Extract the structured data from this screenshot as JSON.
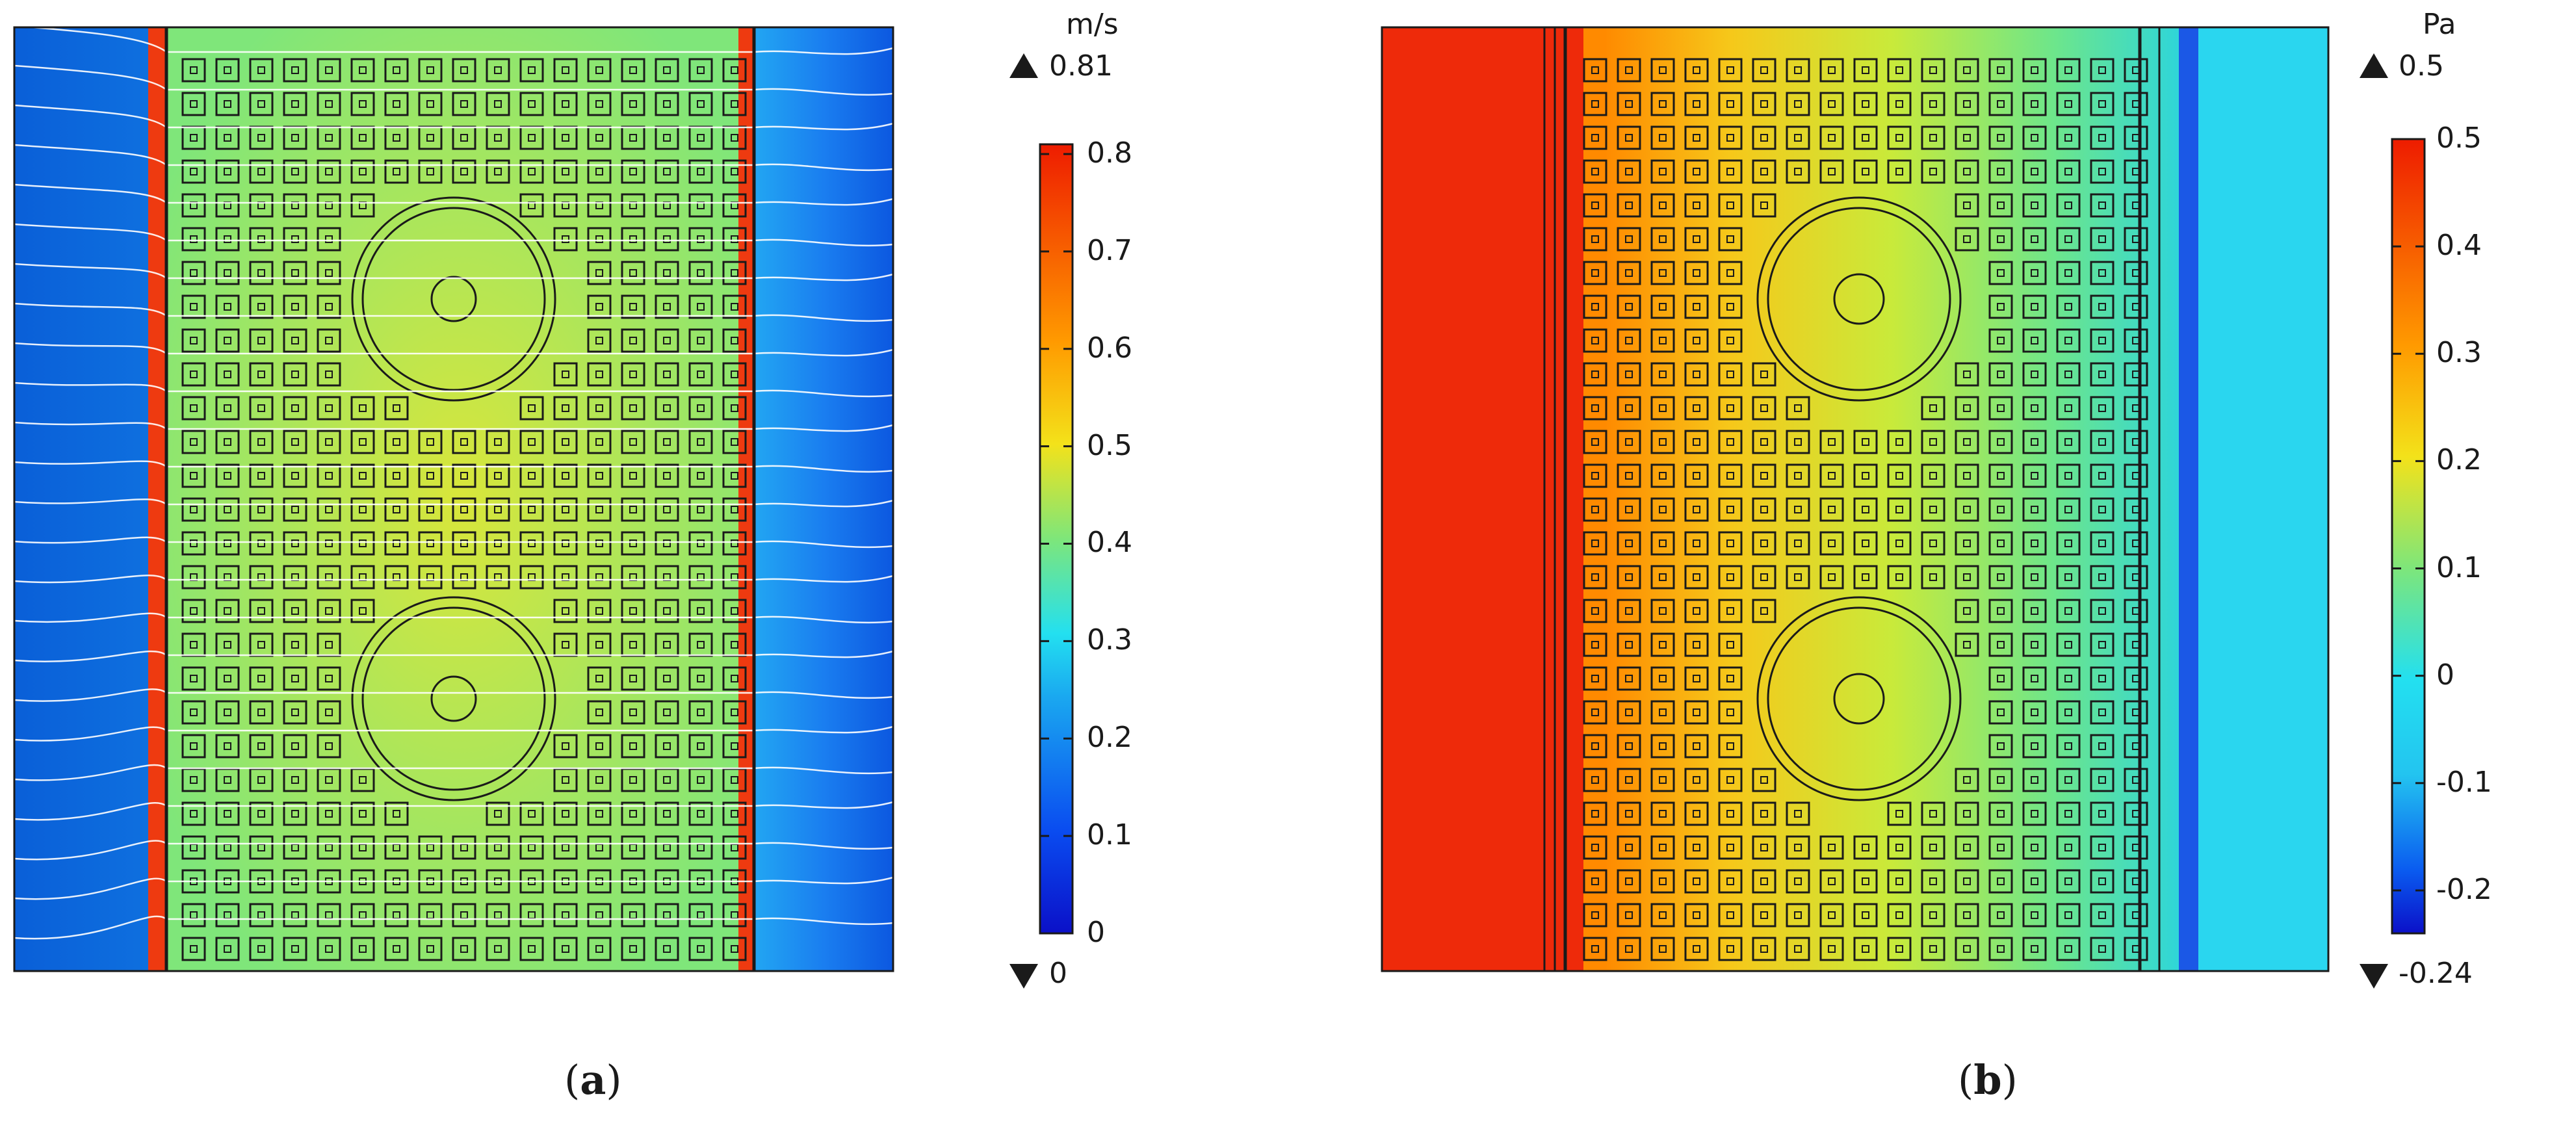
{
  "panel_a": {
    "caption_letter": "a",
    "colorbar": {
      "unit": "m/s",
      "max_marker": "0.81",
      "min_marker": "0",
      "ticks": [
        "0.8",
        "0.7",
        "0.6",
        "0.5",
        "0.4",
        "0.3",
        "0.2",
        "0.1",
        "0"
      ],
      "tick_values": [
        0.8,
        0.7,
        0.6,
        0.5,
        0.4,
        0.3,
        0.2,
        0.1,
        0
      ],
      "range": [
        0,
        0.81
      ]
    },
    "field": "velocity magnitude with white streamlines"
  },
  "panel_b": {
    "caption_letter": "b",
    "colorbar": {
      "unit": "Pa",
      "max_marker": "0.5",
      "min_marker": "-0.24",
      "ticks": [
        "0.5",
        "0.4",
        "0.3",
        "0.2",
        "0.1",
        "0",
        "-0.1",
        "-0.2"
      ],
      "tick_values": [
        0.5,
        0.4,
        0.3,
        0.2,
        0.1,
        0,
        -0.1,
        -0.2
      ],
      "range": [
        -0.24,
        0.5
      ]
    },
    "field": "pressure"
  },
  "colors": {
    "jet_red": "#ee1c00",
    "jet_orange": "#ff8a00",
    "jet_yellow": "#f3e21a",
    "jet_green": "#8be66a",
    "jet_cyan": "#23e0f0",
    "jet_blue": "#0a6df0",
    "jet_dark": "#0b10c8",
    "frame": "#1a1a1a",
    "streamline": "#ffffff"
  },
  "grid": {
    "columns": 17,
    "rows": 27,
    "cylinders": 2
  }
}
